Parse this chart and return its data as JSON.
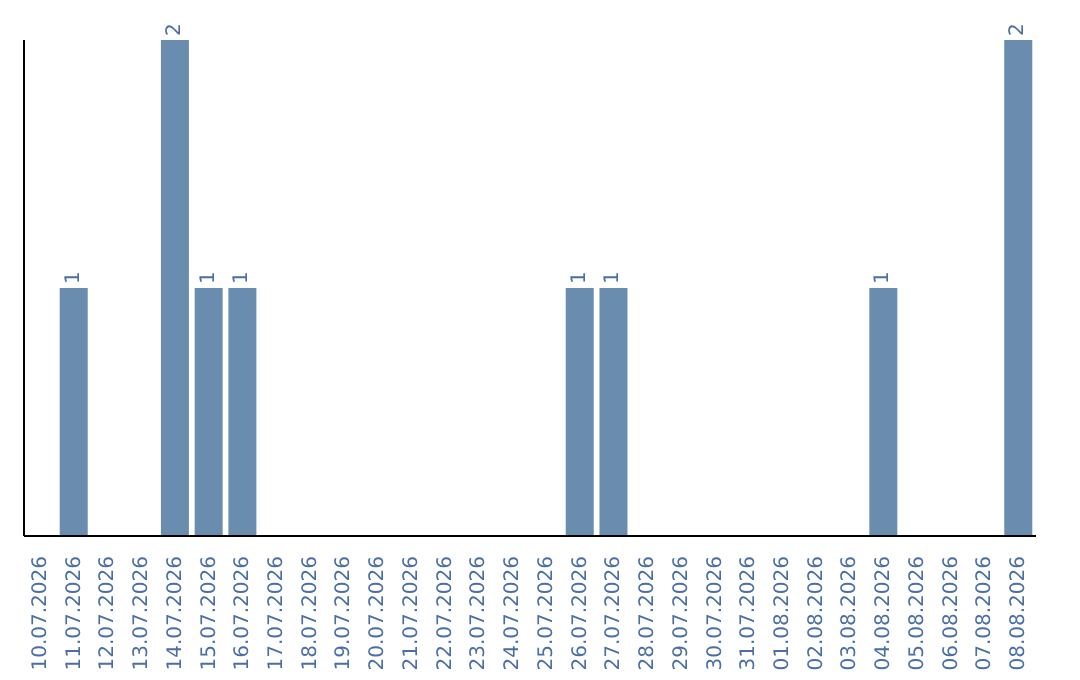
{
  "chart_data": {
    "type": "bar",
    "categories": [
      "10.07.2026",
      "11.07.2026",
      "12.07.2026",
      "13.07.2026",
      "14.07.2026",
      "15.07.2026",
      "16.07.2026",
      "17.07.2026",
      "18.07.2026",
      "19.07.2026",
      "20.07.2026",
      "21.07.2026",
      "22.07.2026",
      "23.07.2026",
      "24.07.2026",
      "25.07.2026",
      "26.07.2026",
      "27.07.2026",
      "28.07.2026",
      "29.07.2026",
      "30.07.2026",
      "31.07.2026",
      "01.08.2026",
      "02.08.2026",
      "03.08.2026",
      "04.08.2026",
      "05.08.2026",
      "06.08.2026",
      "07.08.2026",
      "08.08.2026"
    ],
    "values": [
      0,
      1,
      0,
      0,
      2,
      1,
      1,
      0,
      0,
      0,
      0,
      0,
      0,
      0,
      0,
      0,
      1,
      1,
      0,
      0,
      0,
      0,
      0,
      0,
      0,
      1,
      0,
      0,
      0,
      2
    ],
    "value_labels": [
      null,
      "1",
      null,
      null,
      "2",
      "1",
      "1",
      null,
      null,
      null,
      null,
      null,
      null,
      null,
      null,
      null,
      "1",
      "1",
      null,
      null,
      null,
      null,
      null,
      null,
      null,
      "1",
      null,
      null,
      null,
      "2"
    ],
    "color": "#6a8caf",
    "ylim": [
      0,
      2
    ],
    "tick_labels": "x"
  }
}
